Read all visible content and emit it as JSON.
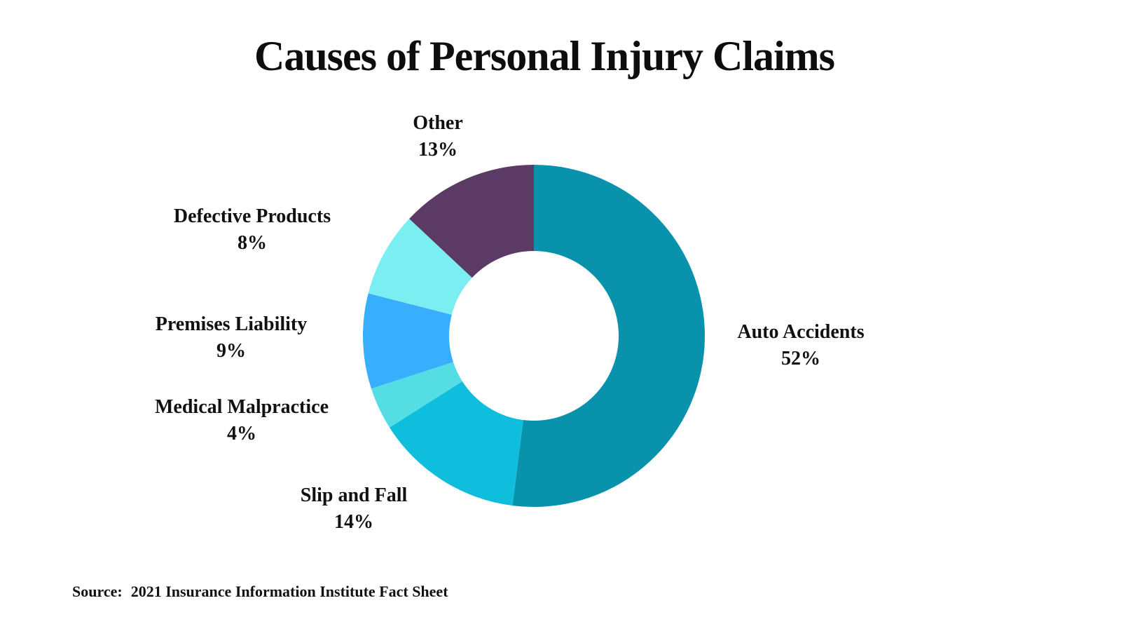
{
  "title": "Causes of Personal Injury Claims",
  "source": {
    "label": "Source:",
    "text": "2021 Insurance Information Institute Fact Sheet"
  },
  "chart_data": {
    "type": "pie",
    "subtype": "donut",
    "title": "Causes of Personal Injury Claims",
    "direction": "clockwise",
    "start_angle_deg": 0,
    "inner_radius_ratio": 0.5,
    "legend_position": "none",
    "labels_position": "outside",
    "background_color": "#ffffff",
    "slices": [
      {
        "label": "Auto Accidents",
        "value": 52,
        "pct_label": "52%",
        "color": "#0992ac"
      },
      {
        "label": "Slip and Fall",
        "value": 14,
        "pct_label": "14%",
        "color": "#0fbedd"
      },
      {
        "label": "Medical Malpractice",
        "value": 4,
        "pct_label": "4%",
        "color": "#54dee4"
      },
      {
        "label": "Premises Liability",
        "value": 9,
        "pct_label": "9%",
        "color": "#38affc"
      },
      {
        "label": "Defective Products",
        "value": 8,
        "pct_label": "8%",
        "color": "#7beef2"
      },
      {
        "label": "Other",
        "value": 13,
        "pct_label": "13%",
        "color": "#5c3a66"
      }
    ]
  }
}
